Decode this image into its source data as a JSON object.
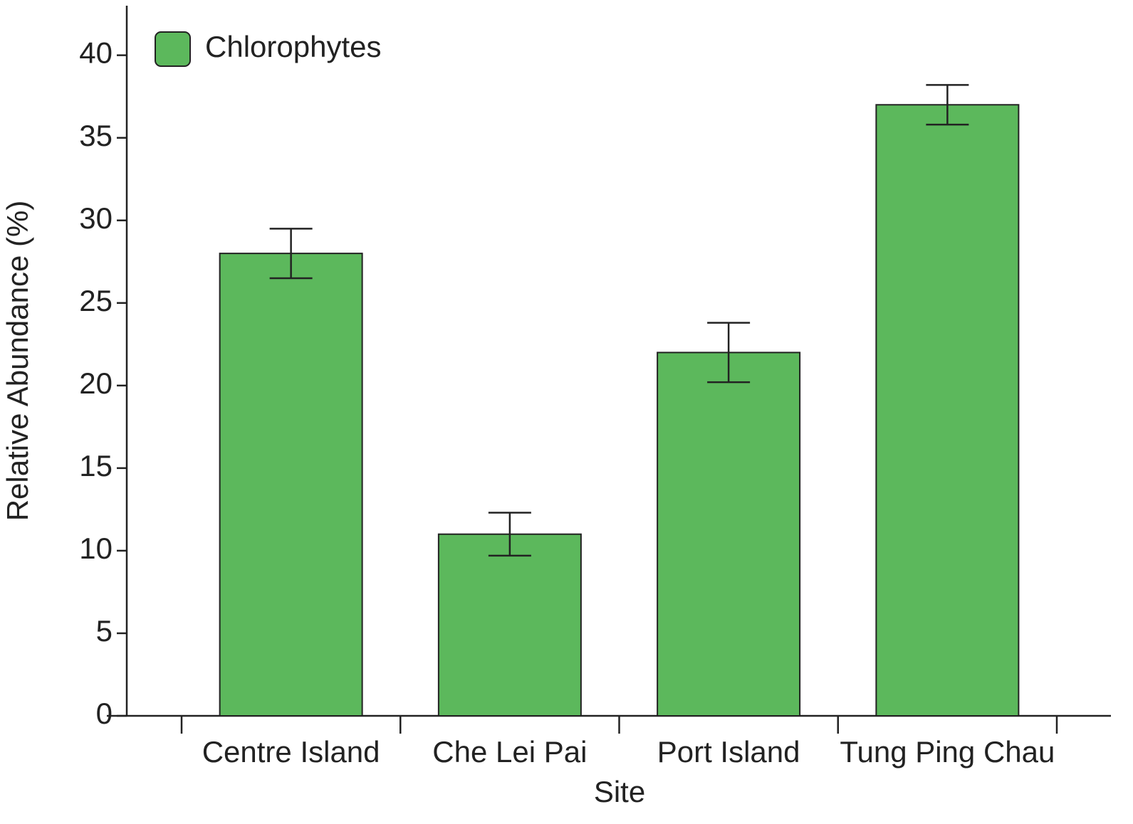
{
  "chart_data": {
    "type": "bar",
    "x_label": "Site",
    "y_label": "Relative Abundance (%)",
    "categories": [
      "Centre Island",
      "Che Lei Pai",
      "Port Island",
      "Tung Ping Chau"
    ],
    "series": [
      {
        "name": "Chlorophytes",
        "color": "#5cb85c",
        "values": [
          28,
          11,
          22,
          37
        ],
        "errors": [
          1.5,
          1.3,
          1.8,
          1.2
        ]
      }
    ],
    "ylim": [
      0,
      43
    ],
    "yticks": [
      0,
      5,
      10,
      15,
      20,
      25,
      30,
      35,
      40
    ],
    "legend": "upper left",
    "grid": false
  }
}
